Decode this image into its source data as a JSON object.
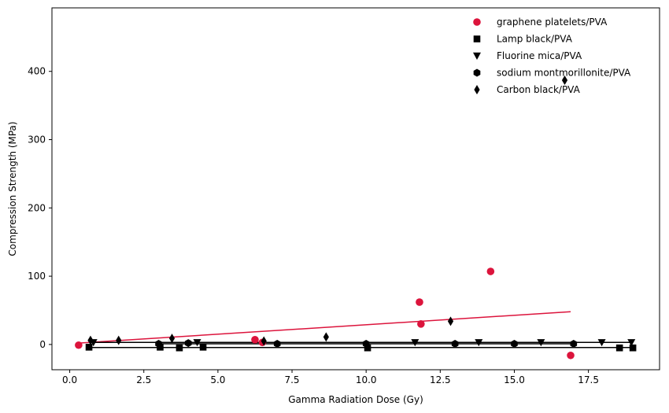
{
  "chart_data": {
    "type": "scatter",
    "title": "",
    "xlabel": "Gamma Radiation Dose (Gy)",
    "ylabel": "Compression Strength (MPa)",
    "xlim": [
      -0.6,
      19.9
    ],
    "ylim": [
      -37,
      493
    ],
    "xticks": [
      "0.0",
      "2.5",
      "5.0",
      "7.5",
      "10.0",
      "12.5",
      "15.0",
      "17.5"
    ],
    "yticks": [
      "0",
      "100",
      "200",
      "300",
      "400"
    ],
    "grid": false,
    "legend_position": "top-right",
    "series": [
      {
        "name": "graphene platelets/PVA",
        "marker": "circle",
        "color": "#dc143c",
        "x": [
          0.3,
          6.25,
          6.5,
          11.8,
          11.85,
          14.2,
          16.9
        ],
        "y": [
          -1,
          7,
          3,
          62,
          30,
          107,
          -16
        ],
        "fit": {
          "x": [
            0.3,
            16.9
          ],
          "y": [
            2,
            48
          ]
        }
      },
      {
        "name": "Lamp black/PVA",
        "marker": "square",
        "color": "#000000",
        "x": [
          0.65,
          3.05,
          3.7,
          4.5,
          10.05,
          18.55,
          19.0
        ],
        "y": [
          -4,
          -4,
          -5,
          -4,
          -5,
          -5,
          -5
        ],
        "fit": {
          "x": [
            0.65,
            19.0
          ],
          "y": [
            -4.5,
            -4.5
          ]
        }
      },
      {
        "name": "Fluorine mica/PVA",
        "marker": "triangle-down",
        "color": "#000000",
        "x": [
          0.8,
          4.3,
          11.65,
          13.8,
          15.9,
          17.95,
          18.95
        ],
        "y": [
          3,
          3,
          3,
          3,
          3,
          3,
          3
        ],
        "fit": {
          "x": [
            0.8,
            18.95
          ],
          "y": [
            3,
            3
          ]
        }
      },
      {
        "name": "sodium montmorillonite/PVA",
        "marker": "hexagon",
        "color": "#000000",
        "x": [
          3.0,
          4.0,
          7.0,
          10.0,
          13.0,
          15.0,
          17.0
        ],
        "y": [
          1,
          2,
          1,
          1,
          1,
          1,
          1
        ],
        "fit": {
          "x": [
            3.0,
            17.0
          ],
          "y": [
            1,
            1
          ]
        }
      },
      {
        "name": "Carbon black/PVA",
        "marker": "diamond",
        "color": "#000000",
        "x": [
          0.7,
          1.65,
          3.45,
          6.55,
          8.65,
          12.85,
          16.7
        ],
        "y": [
          6,
          6,
          9,
          5,
          11,
          34,
          387
        ],
        "fit": null
      }
    ]
  }
}
